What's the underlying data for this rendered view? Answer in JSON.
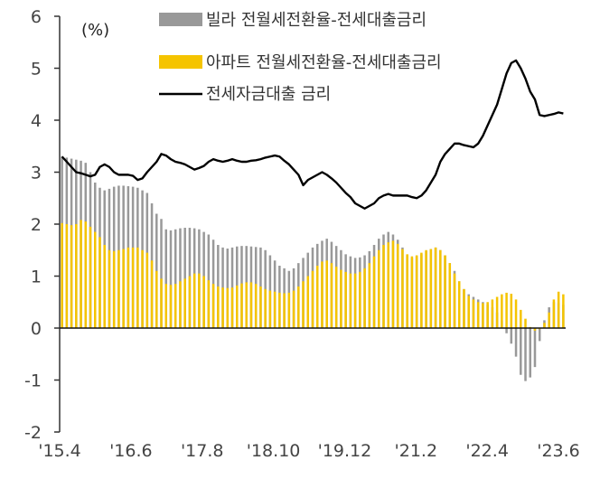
{
  "chart_data": {
    "type": "bar",
    "unit_label": "(%)",
    "ylim": [
      -2,
      6
    ],
    "yticks": [
      "6",
      "5",
      "4",
      "3",
      "2",
      "1",
      "0",
      "-1",
      "-2"
    ],
    "xticks": [
      "'15.4",
      "'16.6",
      "'17.8",
      "'18.10",
      "'19.12",
      "'21.2",
      "'22.4",
      "'23.6"
    ],
    "period_start": "2015-04",
    "period_end": "2023-07",
    "grid": false,
    "legend": "top-left",
    "series": [
      {
        "name": "빌라 전월세전환율-전세대출금리",
        "kind": "bar",
        "color": "#999999",
        "values": [
          3.3,
          3.28,
          3.26,
          3.24,
          3.22,
          3.18,
          3.0,
          2.8,
          2.7,
          2.65,
          2.68,
          2.72,
          2.74,
          2.74,
          2.73,
          2.72,
          2.7,
          2.65,
          2.6,
          2.4,
          2.2,
          2.1,
          1.9,
          1.88,
          1.9,
          1.92,
          1.93,
          1.93,
          1.92,
          1.9,
          1.85,
          1.8,
          1.7,
          1.6,
          1.55,
          1.53,
          1.55,
          1.57,
          1.58,
          1.58,
          1.57,
          1.56,
          1.55,
          1.5,
          1.4,
          1.3,
          1.2,
          1.15,
          1.1,
          1.15,
          1.25,
          1.35,
          1.45,
          1.55,
          1.62,
          1.68,
          1.72,
          1.66,
          1.58,
          1.5,
          1.42,
          1.38,
          1.35,
          1.36,
          1.4,
          1.48,
          1.6,
          1.72,
          1.8,
          1.85,
          1.8,
          1.7,
          1.55,
          1.4,
          1.35,
          1.38,
          1.42,
          1.48,
          1.52,
          1.55,
          1.5,
          1.4,
          1.25,
          1.1,
          0.9,
          0.75,
          0.65,
          0.6,
          0.55,
          0.5,
          0.45,
          0.4,
          0.3,
          0.15,
          -0.1,
          -0.3,
          -0.55,
          -0.9,
          -1.02,
          -0.95,
          -0.75,
          -0.25,
          0.15,
          0.4,
          0.5,
          0.48,
          0.45
        ]
      },
      {
        "name": "아파트 전월세전환율-전세대출금리",
        "kind": "bar",
        "color": "#F5C400",
        "values": [
          2.02,
          2.0,
          1.98,
          2.0,
          2.08,
          2.05,
          1.95,
          1.85,
          1.75,
          1.6,
          1.5,
          1.48,
          1.5,
          1.52,
          1.55,
          1.55,
          1.55,
          1.5,
          1.45,
          1.3,
          1.1,
          0.95,
          0.85,
          0.83,
          0.85,
          0.9,
          0.95,
          1.0,
          1.05,
          1.05,
          1.0,
          0.92,
          0.85,
          0.8,
          0.78,
          0.77,
          0.78,
          0.82,
          0.86,
          0.88,
          0.88,
          0.85,
          0.8,
          0.75,
          0.72,
          0.7,
          0.68,
          0.67,
          0.68,
          0.72,
          0.8,
          0.9,
          1.0,
          1.1,
          1.2,
          1.28,
          1.3,
          1.25,
          1.18,
          1.12,
          1.08,
          1.05,
          1.05,
          1.08,
          1.15,
          1.25,
          1.38,
          1.5,
          1.6,
          1.65,
          1.68,
          1.62,
          1.52,
          1.42,
          1.38,
          1.4,
          1.45,
          1.5,
          1.52,
          1.55,
          1.5,
          1.4,
          1.25,
          1.05,
          0.9,
          0.75,
          0.62,
          0.55,
          0.5,
          0.48,
          0.5,
          0.55,
          0.6,
          0.65,
          0.68,
          0.66,
          0.55,
          0.35,
          0.18,
          0.02,
          -0.05,
          -0.02,
          0.1,
          0.3,
          0.55,
          0.7,
          0.65
        ]
      },
      {
        "name": "전세자금대출 금리",
        "kind": "line",
        "color": "#000000",
        "values": [
          3.3,
          3.2,
          3.1,
          3.0,
          2.98,
          2.95,
          2.92,
          2.95,
          3.1,
          3.15,
          3.1,
          3.0,
          2.95,
          2.95,
          2.95,
          2.93,
          2.85,
          2.88,
          3.0,
          3.1,
          3.2,
          3.35,
          3.32,
          3.25,
          3.2,
          3.18,
          3.15,
          3.1,
          3.05,
          3.08,
          3.12,
          3.2,
          3.25,
          3.22,
          3.2,
          3.22,
          3.25,
          3.22,
          3.2,
          3.2,
          3.22,
          3.23,
          3.25,
          3.28,
          3.3,
          3.32,
          3.3,
          3.22,
          3.15,
          3.05,
          2.95,
          2.75,
          2.85,
          2.9,
          2.95,
          3.0,
          2.95,
          2.88,
          2.8,
          2.7,
          2.6,
          2.52,
          2.4,
          2.35,
          2.3,
          2.35,
          2.4,
          2.5,
          2.55,
          2.58,
          2.55,
          2.55,
          2.55,
          2.55,
          2.52,
          2.5,
          2.55,
          2.65,
          2.8,
          2.95,
          3.2,
          3.35,
          3.45,
          3.55,
          3.55,
          3.52,
          3.5,
          3.48,
          3.55,
          3.7,
          3.9,
          4.1,
          4.3,
          4.6,
          4.9,
          5.1,
          5.15,
          5.0,
          4.8,
          4.55,
          4.4,
          4.1,
          4.08,
          4.1,
          4.12,
          4.15,
          4.13
        ]
      }
    ]
  }
}
